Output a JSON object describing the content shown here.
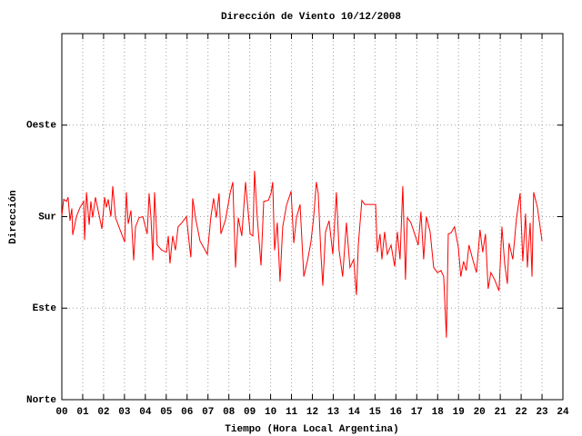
{
  "chart_data": {
    "type": "line",
    "title": "Dirección de Viento 10/12/2008",
    "x_label": "Tiempo (Hora Local Argentina)",
    "y_label": "Dirección",
    "xlim": [
      0,
      24
    ],
    "xticks": [
      {
        "value": 0,
        "label": "00"
      },
      {
        "value": 1,
        "label": "01"
      },
      {
        "value": 2,
        "label": "02"
      },
      {
        "value": 3,
        "label": "03"
      },
      {
        "value": 4,
        "label": "04"
      },
      {
        "value": 5,
        "label": "05"
      },
      {
        "value": 6,
        "label": "06"
      },
      {
        "value": 7,
        "label": "07"
      },
      {
        "value": 8,
        "label": "08"
      },
      {
        "value": 9,
        "label": "09"
      },
      10,
      11,
      12,
      13,
      14,
      15,
      16,
      17,
      18,
      19,
      20,
      21,
      22,
      23,
      24
    ],
    "ylim": [
      0,
      360
    ],
    "yticks": [
      {
        "value": 0,
        "label": "Norte"
      },
      {
        "value": 90,
        "label": "Este"
      },
      {
        "value": 180,
        "label": "Sur"
      },
      {
        "value": 270,
        "label": "Oeste"
      }
    ],
    "grid": true,
    "x": [
      0,
      0.09,
      0.22,
      0.3,
      0.39,
      0.48,
      0.52,
      0.7,
      0.87,
      1.05,
      1.09,
      1.18,
      1.31,
      1.39,
      1.48,
      1.61,
      1.74,
      1.92,
      2.05,
      2.13,
      2.22,
      2.35,
      2.44,
      2.57,
      2.79,
      3.01,
      3.09,
      3.18,
      3.31,
      3.44,
      3.53,
      3.7,
      3.88,
      4.09,
      4.18,
      4.27,
      4.36,
      4.44,
      4.57,
      4.79,
      5.01,
      5.1,
      5.18,
      5.31,
      5.44,
      5.57,
      5.75,
      5.97,
      6.1,
      6.18,
      6.27,
      6.4,
      6.62,
      6.97,
      7.14,
      7.27,
      7.4,
      7.53,
      7.62,
      7.84,
      8.06,
      8.19,
      8.32,
      8.45,
      8.62,
      8.8,
      9.02,
      9.15,
      9.23,
      9.36,
      9.54,
      9.67,
      9.89,
      10.02,
      10.1,
      10.19,
      10.32,
      10.45,
      10.58,
      10.76,
      10.98,
      11.11,
      11.24,
      11.41,
      11.59,
      11.76,
      11.93,
      12.06,
      12.19,
      12.28,
      12.41,
      12.5,
      12.63,
      12.8,
      12.98,
      13.15,
      13.28,
      13.45,
      13.63,
      13.8,
      13.98,
      14.11,
      14.2,
      14.37,
      14.51,
      14.68,
      15.03,
      15.11,
      15.24,
      15.33,
      15.46,
      15.59,
      15.77,
      15.94,
      16.07,
      16.2,
      16.33,
      16.46,
      16.55,
      16.72,
      16.9,
      17.07,
      17.2,
      17.33,
      17.46,
      17.64,
      17.81,
      17.99,
      18.16,
      18.29,
      18.42,
      18.51,
      18.64,
      18.81,
      18.99,
      19.11,
      19.24,
      19.37,
      19.5,
      19.68,
      19.86,
      20.03,
      20.16,
      20.29,
      20.42,
      20.55,
      20.73,
      20.94,
      21.08,
      21.21,
      21.34,
      21.42,
      21.6,
      21.78,
      21.95,
      22.08,
      22.21,
      22.3,
      22.43,
      22.52,
      22.6,
      22.78,
      23
    ],
    "series": [
      {
        "name": "Dirección",
        "color": "#ff0000",
        "values": [
          181,
          197,
          195,
          199,
          176,
          188,
          162,
          180,
          189,
          195,
          157,
          204,
          172,
          195,
          179,
          199,
          186,
          168,
          199,
          189,
          197,
          180,
          210,
          179,
          167,
          155,
          204,
          173,
          186,
          137,
          170,
          179,
          180,
          163,
          203,
          179,
          137,
          204,
          152,
          147,
          145,
          161,
          134,
          161,
          147,
          170,
          174,
          180,
          154,
          140,
          198,
          179,
          156,
          143,
          180,
          198,
          179,
          203,
          163,
          177,
          203,
          214,
          130,
          179,
          161,
          214,
          163,
          161,
          225,
          179,
          132,
          195,
          196,
          203,
          214,
          147,
          174,
          116,
          170,
          191,
          205,
          154,
          179,
          192,
          121,
          136,
          155,
          179,
          214,
          203,
          143,
          112,
          165,
          176,
          143,
          204,
          147,
          121,
          174,
          130,
          138,
          103,
          152,
          196,
          192,
          192,
          192,
          145,
          163,
          138,
          165,
          143,
          152,
          131,
          165,
          138,
          210,
          118,
          179,
          174,
          163,
          152,
          185,
          138,
          180,
          165,
          130,
          125,
          127,
          121,
          61,
          163,
          164,
          170,
          150,
          121,
          136,
          127,
          152,
          138,
          125,
          167,
          145,
          163,
          109,
          125,
          118,
          107,
          170,
          134,
          114,
          154,
          138,
          179,
          203,
          136,
          183,
          130,
          174,
          121,
          204,
          189,
          156
        ]
      }
    ]
  }
}
